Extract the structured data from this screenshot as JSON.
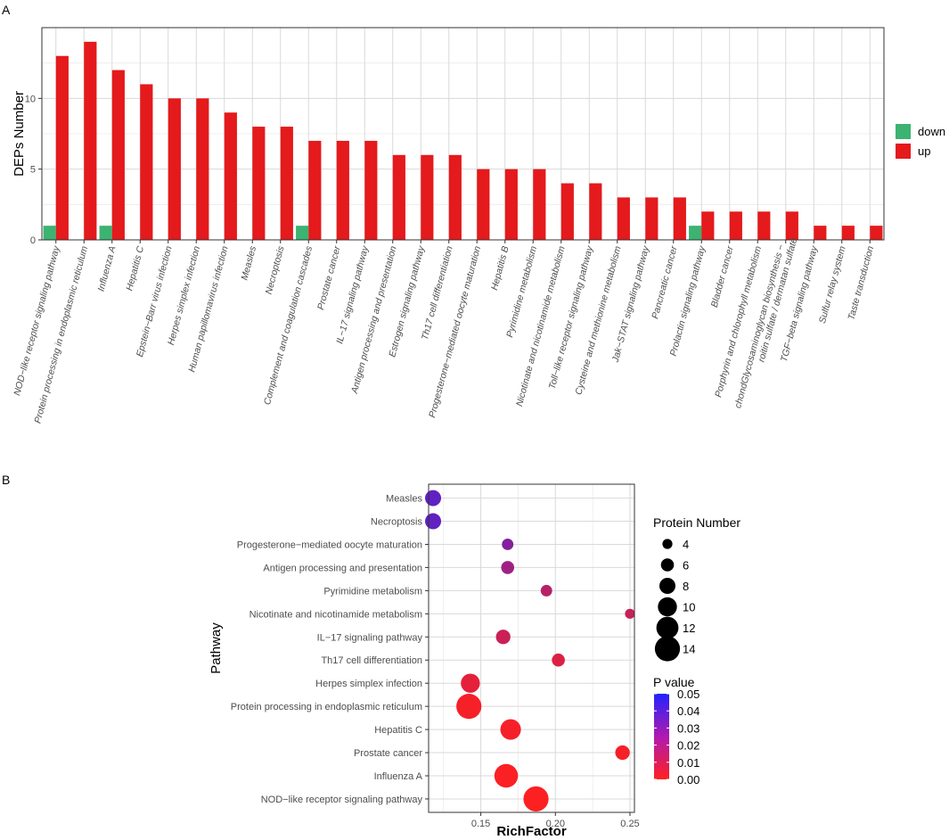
{
  "colors": {
    "up": "#e41a1c",
    "down": "#3cb371",
    "grid": "#d9d9d9",
    "panel_border": "#333333",
    "p_high": "#2222ff",
    "p_low": "#ff2020"
  },
  "chart_data": [
    {
      "panel_label": "A",
      "type": "bar",
      "ylabel": "DEPs Number",
      "ylim": [
        0,
        15
      ],
      "yticks": [
        0,
        5,
        10
      ],
      "legend": {
        "position": "right",
        "entries": [
          {
            "name": "down",
            "color": "#3cb371"
          },
          {
            "name": "up",
            "color": "#e41a1c"
          }
        ]
      },
      "categories": [
        "NOD−like receptor signaling pathway",
        "Protein processing in endoplasmic reticulum",
        "Influenza A",
        "Hepatitis C",
        "Epstein−Barr virus infection",
        "Herpes simplex infection",
        "Human papillomavirus infection",
        "Measles",
        "Necroptosis",
        "Complement and coagulation cascades",
        "Prostate cancer",
        "IL−17 signaling pathway",
        "Antigen processing and presentation",
        "Estrogen signaling pathway",
        "Th17 cell differentiation",
        "Progesterone−mediated oocyte maturation",
        "Hepatitis B",
        "Pyrimidine metabolism",
        "Nicotinate and nicotinamide metabolism",
        "Toll−like receptor signaling pathway",
        "Cysteine and methionine metabolism",
        "Jak−STAT signaling pathway",
        "Pancreatic cancer",
        "Prolactin signaling pathway",
        "Bladder cancer",
        "Porphyrin and chlorophyll metabolism",
        "chondGlycosaminoglycan biosynthesis −|roitin sulfate / dermatan sulfate",
        "TGF−beta signaling pathway",
        "Sulfur relay system",
        "Taste transduction"
      ],
      "series": [
        {
          "name": "down",
          "values": [
            1,
            0,
            1,
            0,
            0,
            0,
            0,
            0,
            0,
            1,
            0,
            0,
            0,
            0,
            0,
            0,
            0,
            0,
            0,
            0,
            0,
            0,
            0,
            1,
            0,
            0,
            0,
            0,
            0,
            0
          ]
        },
        {
          "name": "up",
          "values": [
            13,
            14,
            12,
            11,
            10,
            10,
            9,
            8,
            8,
            7,
            7,
            7,
            6,
            6,
            6,
            5,
            5,
            5,
            4,
            4,
            3,
            3,
            3,
            2,
            2,
            2,
            2,
            1,
            1,
            1
          ]
        }
      ]
    },
    {
      "panel_label": "B",
      "type": "scatter",
      "xlabel": "RichFactor",
      "ylabel": "Pathway",
      "xlim": [
        0.115,
        0.253
      ],
      "xticks": [
        0.15,
        0.2,
        0.25
      ],
      "xtick_labels": [
        "0.15",
        "0.20",
        "0.25"
      ],
      "size_legend": {
        "title": "Protein Number",
        "values": [
          4,
          6,
          8,
          10,
          12,
          14
        ]
      },
      "color_legend": {
        "title": "P value",
        "range": [
          0.0,
          0.05
        ],
        "ticks": [
          "0.05",
          "0.04",
          "0.03",
          "0.02",
          "0.01",
          "0.00"
        ]
      },
      "points": [
        {
          "pathway": "Measles",
          "richfactor": 0.118,
          "count": 8,
          "pvalue": 0.036
        },
        {
          "pathway": "Necroptosis",
          "richfactor": 0.118,
          "count": 8,
          "pvalue": 0.036
        },
        {
          "pathway": "Progesterone−mediated oocyte maturation",
          "richfactor": 0.168,
          "count": 5,
          "pvalue": 0.028
        },
        {
          "pathway": "Antigen processing and presentation",
          "richfactor": 0.168,
          "count": 6,
          "pvalue": 0.022
        },
        {
          "pathway": "Pyrimidine metabolism",
          "richfactor": 0.194,
          "count": 5,
          "pvalue": 0.016
        },
        {
          "pathway": "Nicotinate and nicotinamide metabolism",
          "richfactor": 0.25,
          "count": 4,
          "pvalue": 0.013
        },
        {
          "pathway": "IL−17 signaling pathway",
          "richfactor": 0.165,
          "count": 7,
          "pvalue": 0.012
        },
        {
          "pathway": "Th17 cell differentiation",
          "richfactor": 0.202,
          "count": 6,
          "pvalue": 0.008
        },
        {
          "pathway": "Herpes simplex infection",
          "richfactor": 0.143,
          "count": 10,
          "pvalue": 0.006
        },
        {
          "pathway": "Protein processing in endoplasmic reticulum",
          "richfactor": 0.142,
          "count": 14,
          "pvalue": 0.002
        },
        {
          "pathway": "Hepatitis C",
          "richfactor": 0.17,
          "count": 11,
          "pvalue": 0.002
        },
        {
          "pathway": "Prostate cancer",
          "richfactor": 0.245,
          "count": 7,
          "pvalue": 0.002
        },
        {
          "pathway": "Influenza A",
          "richfactor": 0.167,
          "count": 13,
          "pvalue": 0.001
        },
        {
          "pathway": "NOD−like receptor signaling pathway",
          "richfactor": 0.187,
          "count": 14,
          "pvalue": 0.0005
        }
      ]
    }
  ]
}
